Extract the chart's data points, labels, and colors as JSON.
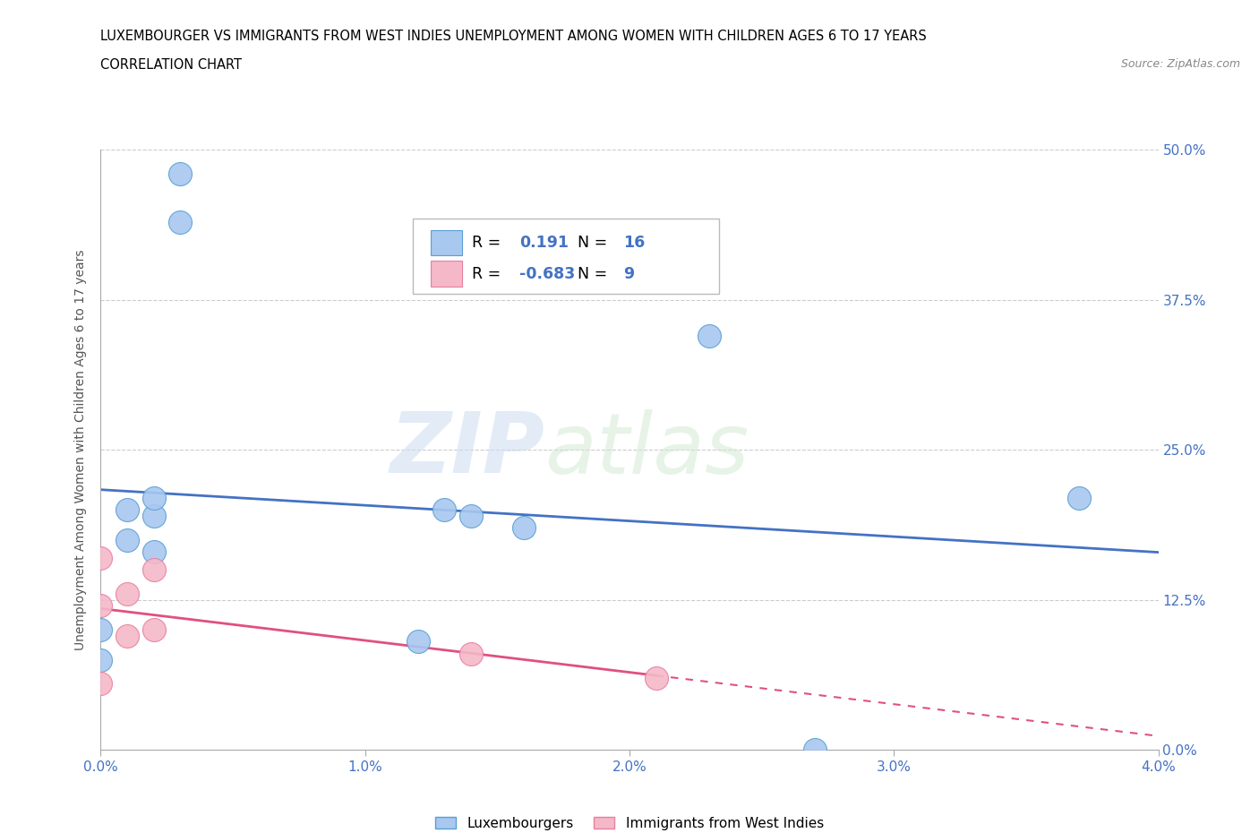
{
  "title_line1": "LUXEMBOURGER VS IMMIGRANTS FROM WEST INDIES UNEMPLOYMENT AMONG WOMEN WITH CHILDREN AGES 6 TO 17 YEARS",
  "title_line2": "CORRELATION CHART",
  "source": "Source: ZipAtlas.com",
  "ylabel": "Unemployment Among Women with Children Ages 6 to 17 years",
  "xlim": [
    0.0,
    0.04
  ],
  "ylim": [
    0.0,
    0.5
  ],
  "yticks": [
    0.0,
    0.125,
    0.25,
    0.375,
    0.5
  ],
  "ytick_labels": [
    "0.0%",
    "12.5%",
    "25.0%",
    "37.5%",
    "50.0%"
  ],
  "xticks": [
    0.0,
    0.01,
    0.02,
    0.03,
    0.04
  ],
  "xtick_labels": [
    "0.0%",
    "1.0%",
    "2.0%",
    "3.0%",
    "4.0%"
  ],
  "lux_x": [
    0.0,
    0.0,
    0.001,
    0.001,
    0.002,
    0.002,
    0.002,
    0.003,
    0.003,
    0.012,
    0.013,
    0.014,
    0.016,
    0.023,
    0.027,
    0.037
  ],
  "lux_y": [
    0.075,
    0.1,
    0.175,
    0.2,
    0.165,
    0.195,
    0.21,
    0.44,
    0.48,
    0.09,
    0.2,
    0.195,
    0.185,
    0.345,
    0.0,
    0.21
  ],
  "wi_x": [
    0.0,
    0.0,
    0.0,
    0.001,
    0.001,
    0.002,
    0.002,
    0.014,
    0.021
  ],
  "wi_y": [
    0.12,
    0.16,
    0.055,
    0.095,
    0.13,
    0.1,
    0.15,
    0.08,
    0.06
  ],
  "lux_color": "#a8c8f0",
  "lux_edge": "#5a9fd4",
  "wi_color": "#f5b8c8",
  "wi_edge": "#e87fa0",
  "lux_R": 0.191,
  "lux_N": 16,
  "wi_R": -0.683,
  "wi_N": 9,
  "lux_line_color": "#4472c4",
  "wi_line_color": "#e05080",
  "wi_line_solid_end": 0.021,
  "wi_line_dashed_end": 0.04,
  "watermark_zip": "ZIP",
  "watermark_atlas": "atlas",
  "background_color": "#ffffff",
  "grid_color": "#cccccc",
  "marker_size": 350,
  "legend_R_color": "#4472c4"
}
